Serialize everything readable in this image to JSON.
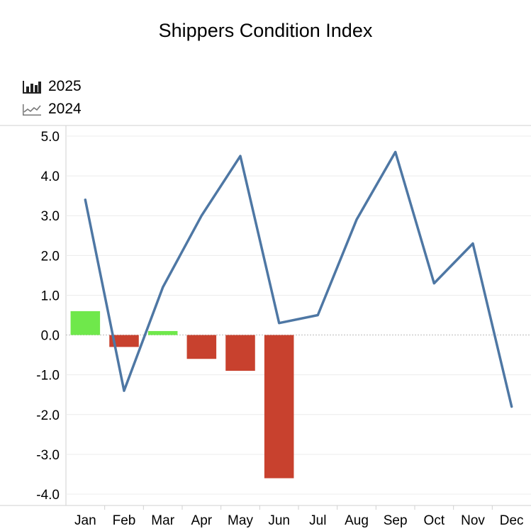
{
  "chart_data": {
    "type": "bar",
    "title": "Shippers Condition Index",
    "categories": [
      "Jan",
      "Feb",
      "Mar",
      "Apr",
      "May",
      "Jun",
      "Jul",
      "Aug",
      "Sep",
      "Oct",
      "Nov",
      "Dec"
    ],
    "series": [
      {
        "name": "2025",
        "type": "bar",
        "values": [
          0.6,
          -0.3,
          0.1,
          -0.6,
          -0.9,
          -3.6,
          null,
          null,
          null,
          null,
          null,
          null
        ]
      },
      {
        "name": "2024",
        "type": "line",
        "values": [
          3.4,
          -1.4,
          1.2,
          3.0,
          4.5,
          0.3,
          0.5,
          2.9,
          4.6,
          1.3,
          2.3,
          -1.8
        ]
      }
    ],
    "ylim": [
      -4.0,
      5.0
    ],
    "yticks": [
      "5.0",
      "4.0",
      "3.0",
      "2.0",
      "1.0",
      "0.0",
      "-1.0",
      "-2.0",
      "-3.0",
      "-4.0"
    ],
    "xlabel": "",
    "ylabel": "",
    "grid": true,
    "legend": "top-left",
    "colors": {
      "positive_bar": "#6fe84b",
      "negative_bar": "#c8412e",
      "line": "#4e77a4",
      "grid": "#ececec",
      "zero_line": "#bdbdbd"
    }
  }
}
